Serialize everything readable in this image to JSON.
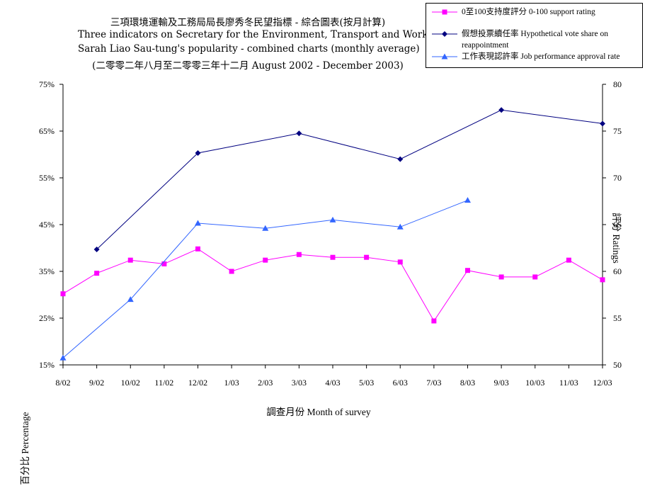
{
  "chart_data": {
    "type": "line",
    "title_lines": [
      "三項環境運輸及工務局局長廖秀冬民望指標 - 綜合圖表(按月計算)",
      "Three indicators on Secretary for the Environment, Transport and Works",
      "Sarah Liao Sau-tung's popularity - combined charts (monthly average)",
      "(二零零二年八月至二零零三年十二月 August 2002 - December 2003)"
    ],
    "xlabel": "調查月份 Month of survey",
    "ylabel_left": "百分比 Percentage",
    "ylabel_right": "評分 Ratings",
    "categories": [
      "8/02",
      "9/02",
      "10/02",
      "11/02",
      "12/02",
      "1/03",
      "2/03",
      "3/03",
      "4/03",
      "5/03",
      "6/03",
      "7/03",
      "8/03",
      "9/03",
      "10/03",
      "11/03",
      "12/03"
    ],
    "y_left": {
      "min": 15,
      "max": 75,
      "ticks": [
        "15%",
        "25%",
        "35%",
        "45%",
        "55%",
        "65%",
        "75%"
      ],
      "values": [
        15,
        25,
        35,
        45,
        55,
        65,
        75
      ]
    },
    "y_right": {
      "min": 50,
      "max": 80,
      "ticks": [
        "50",
        "55",
        "60",
        "65",
        "70",
        "75",
        "80"
      ],
      "values": [
        50,
        55,
        60,
        65,
        70,
        75,
        80
      ]
    },
    "series": [
      {
        "name": "0至100支持度評分 0-100 support rating",
        "axis": "right",
        "color": "#ff00ff",
        "marker": "square",
        "values": [
          57.6,
          59.8,
          61.2,
          60.8,
          62.4,
          60.0,
          61.2,
          61.8,
          61.5,
          61.5,
          61.0,
          54.7,
          60.1,
          59.4,
          59.4,
          61.2,
          59.1
        ]
      },
      {
        "name": "假想投票續任率 Hypothetical vote share on reappointment",
        "axis": "left",
        "color": "#000080",
        "marker": "diamond",
        "values": [
          null,
          39.7,
          null,
          null,
          60.3,
          null,
          null,
          64.5,
          null,
          null,
          59.0,
          null,
          null,
          69.5,
          null,
          null,
          66.6
        ]
      },
      {
        "name": "工作表現認許率 Job performance approval rate",
        "axis": "left",
        "color": "#3366ff",
        "marker": "triangle",
        "values": [
          16.5,
          null,
          29.0,
          null,
          45.3,
          null,
          44.2,
          null,
          46.0,
          null,
          44.5,
          null,
          50.2,
          null,
          null,
          null,
          null
        ]
      }
    ],
    "grid": false,
    "legend_position": "top-right"
  }
}
